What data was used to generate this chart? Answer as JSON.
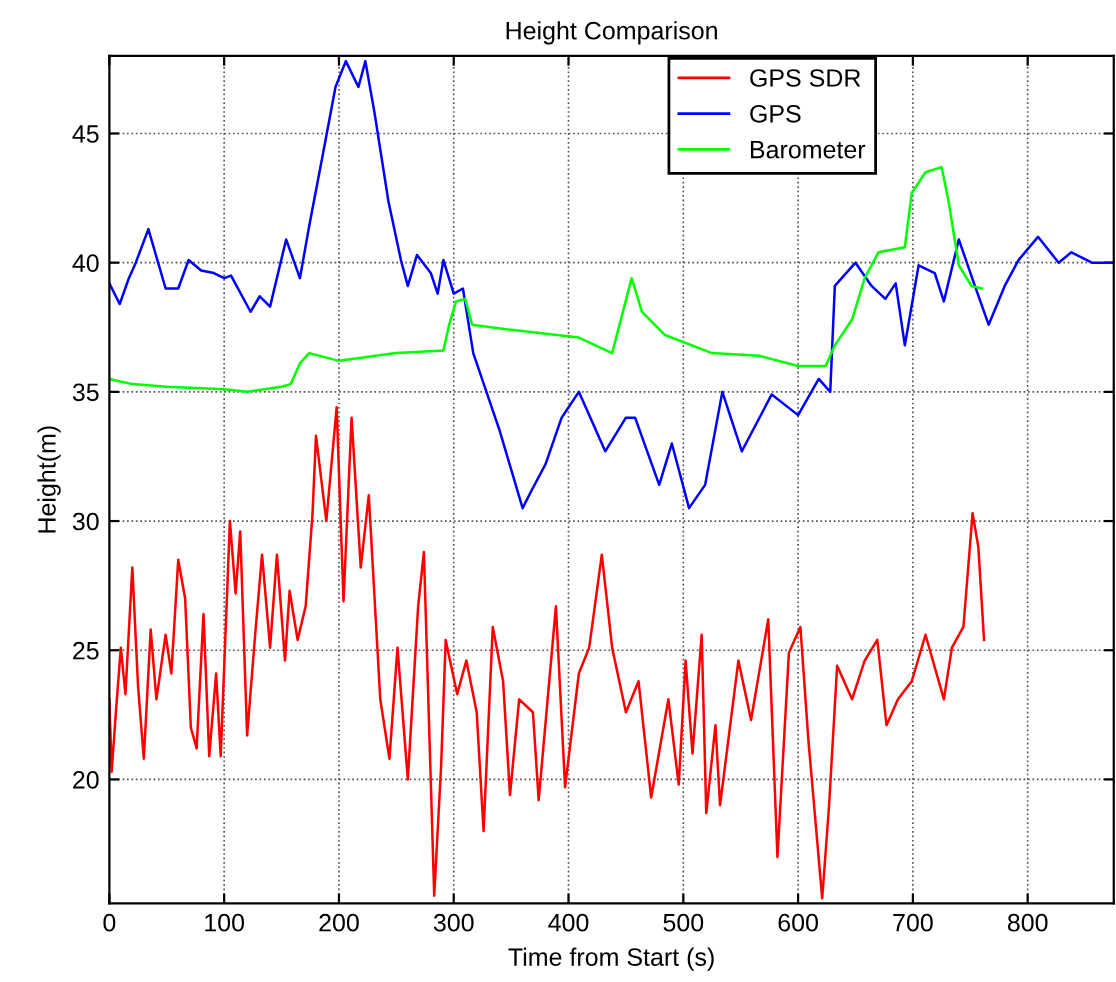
{
  "chart_data": {
    "type": "line",
    "title": "Height Comparison",
    "xlabel": "Time from Start (s)",
    "ylabel": "Height(m)",
    "xlim": [
      0,
      875
    ],
    "ylim": [
      15.2,
      48
    ],
    "xticks": [
      0,
      100,
      200,
      300,
      400,
      500,
      600,
      700,
      800
    ],
    "yticks": [
      20,
      25,
      30,
      35,
      40,
      45
    ],
    "grid": true,
    "legend": "top",
    "marker": "none",
    "series": [
      {
        "name": "GPS SDR",
        "color": "#ff0000",
        "x": [
          0,
          2,
          6,
          10,
          14,
          20,
          25,
          30,
          36,
          41,
          49,
          54,
          60,
          66,
          71,
          76,
          82,
          87,
          93,
          97,
          105,
          110,
          114,
          120,
          127,
          133,
          140,
          146,
          153,
          157,
          164,
          171,
          177,
          180,
          189,
          198,
          204,
          211,
          219,
          226,
          236,
          244,
          251,
          260,
          269,
          274,
          283,
          289,
          293,
          303,
          311,
          320,
          326,
          334,
          343,
          349,
          357,
          369,
          374,
          389,
          397,
          409,
          418,
          429,
          438,
          450,
          461,
          472,
          487,
          496,
          502,
          508,
          516,
          520,
          528,
          532,
          540,
          548,
          559,
          574,
          582,
          592,
          602,
          609,
          621,
          627,
          634,
          647,
          658,
          669,
          677,
          687,
          699,
          711,
          727,
          734,
          744,
          752,
          757,
          762
        ],
        "values": [
          23.1,
          20.3,
          22.8,
          25.1,
          23.3,
          28.2,
          23.6,
          20.8,
          25.8,
          23.1,
          25.6,
          24.1,
          28.5,
          27,
          22,
          21.2,
          26.4,
          20.9,
          24.1,
          20.9,
          30,
          27.2,
          29.6,
          21.7,
          25.6,
          28.7,
          25.1,
          28.7,
          24.6,
          27.3,
          25.4,
          26.7,
          30.3,
          33.3,
          30,
          34.4,
          26.9,
          34,
          28.2,
          31,
          23.1,
          20.8,
          25.1,
          20,
          26.7,
          28.8,
          15.5,
          20.5,
          25.4,
          23.3,
          24.6,
          22.6,
          18,
          25.9,
          23.8,
          19.4,
          23.1,
          22.6,
          19.2,
          26.7,
          19.7,
          24.1,
          25.1,
          28.7,
          25.1,
          22.6,
          23.8,
          19.3,
          23.1,
          19.8,
          24.6,
          21,
          25.6,
          18.7,
          22.1,
          19,
          21.8,
          24.6,
          22.3,
          26.2,
          17,
          24.9,
          25.9,
          21.5,
          15.4,
          19,
          24.4,
          23.1,
          24.6,
          25.4,
          22.1,
          23.1,
          23.8,
          25.6,
          23.1,
          25.1,
          25.9,
          30.3,
          29,
          25.4
        ]
      },
      {
        "name": "GPS",
        "color": "#0000ff",
        "x": [
          0,
          9,
          17,
          23,
          34,
          49,
          60,
          69,
          80,
          91,
          100,
          106,
          123,
          131,
          140,
          154,
          166,
          174,
          186,
          197,
          206,
          217,
          223,
          231,
          243,
          254,
          260,
          268,
          280,
          286,
          291,
          300,
          308,
          317,
          340,
          360,
          368,
          380,
          394,
          409,
          432,
          450,
          458,
          479,
          490,
          505,
          519,
          534,
          551,
          577,
          600,
          618,
          628,
          632,
          650,
          664,
          676,
          685,
          693,
          705,
          719,
          727,
          740,
          754,
          766,
          780,
          792,
          809,
          827,
          838,
          856,
          873
        ],
        "values": [
          39.2,
          38.4,
          39.4,
          40,
          41.3,
          39,
          39,
          40.1,
          39.7,
          39.6,
          39.4,
          39.5,
          38.1,
          38.7,
          38.3,
          40.9,
          39.4,
          41.4,
          44.2,
          46.8,
          47.8,
          46.8,
          47.8,
          45.8,
          42.4,
          40.1,
          39.1,
          40.3,
          39.6,
          38.8,
          40.1,
          38.8,
          39,
          36.5,
          33.5,
          30.5,
          31.2,
          32.2,
          34,
          35,
          32.7,
          34,
          34,
          31.4,
          33,
          30.5,
          31.4,
          35,
          32.7,
          34.9,
          34.1,
          35.5,
          35,
          39.1,
          40,
          39.1,
          38.6,
          39.2,
          36.8,
          39.9,
          39.6,
          38.5,
          40.9,
          39.1,
          37.6,
          39.1,
          40.1,
          41,
          40,
          40.4,
          40,
          40
        ]
      },
      {
        "name": "Barometer",
        "color": "#00ff00",
        "x": [
          0,
          20,
          50,
          100,
          120,
          150,
          158,
          166,
          174,
          200,
          250,
          291,
          296,
          302,
          310,
          316,
          350,
          409,
          438,
          455,
          464,
          484,
          525,
          566,
          600,
          624,
          632,
          647,
          658,
          670,
          693,
          699,
          711,
          725,
          731,
          740,
          751,
          760
        ],
        "values": [
          35.5,
          35.3,
          35.2,
          35.1,
          35,
          35.2,
          35.3,
          36.1,
          36.5,
          36.2,
          36.5,
          36.6,
          37.6,
          38.5,
          38.6,
          37.6,
          37.4,
          37.1,
          36.5,
          39.4,
          38.1,
          37.2,
          36.5,
          36.4,
          36,
          36,
          36.8,
          37.8,
          39.4,
          40.4,
          40.6,
          42.7,
          43.5,
          43.7,
          42.4,
          39.9,
          39.1,
          39
        ]
      }
    ]
  }
}
